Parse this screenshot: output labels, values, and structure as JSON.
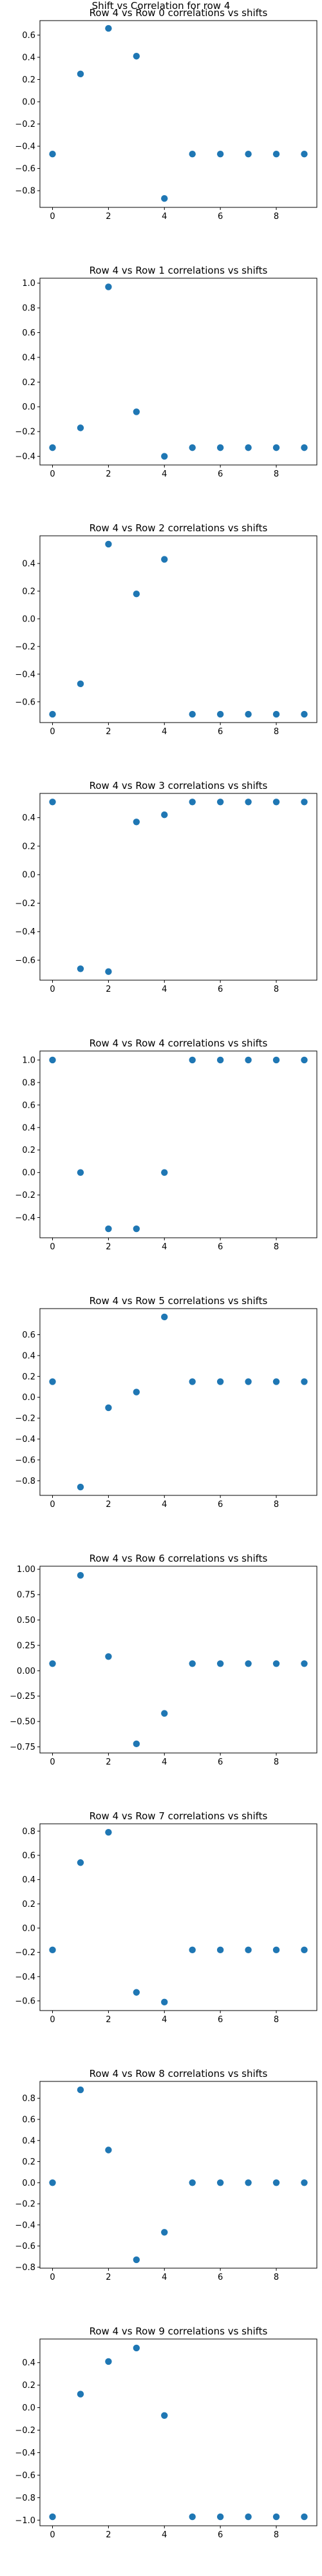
{
  "figure_title": "Shift vs Correlation for row 4",
  "marker_color": "#1f77b4",
  "chart_data": [
    {
      "type": "scatter",
      "title": "Row 4 vs Row 0 correlations vs shifts",
      "x": [
        0,
        1,
        2,
        3,
        4,
        5,
        6,
        7,
        8,
        9
      ],
      "y": [
        -0.47,
        0.25,
        0.66,
        0.41,
        -0.87,
        -0.47,
        -0.47,
        -0.47,
        -0.47,
        -0.47
      ],
      "xticks": [
        0,
        2,
        4,
        6,
        8
      ],
      "xtick_labels": [
        "0",
        "2",
        "4",
        "6",
        "8"
      ],
      "yticks": [
        -0.8,
        -0.6,
        -0.4,
        -0.2,
        0.0,
        0.2,
        0.4,
        0.6
      ],
      "ytick_labels": [
        "−0.8",
        "−0.6",
        "−0.4",
        "−0.2",
        "0.0",
        "0.2",
        "0.4",
        "0.6"
      ],
      "xlim": [
        -0.45,
        9.45
      ],
      "ylim": [
        -0.95,
        0.73
      ],
      "grid": false
    },
    {
      "type": "scatter",
      "title": "Row 4 vs Row 1 correlations vs shifts",
      "x": [
        0,
        1,
        2,
        3,
        4,
        5,
        6,
        7,
        8,
        9
      ],
      "y": [
        -0.33,
        -0.17,
        0.97,
        -0.04,
        -0.4,
        -0.33,
        -0.33,
        -0.33,
        -0.33,
        -0.33
      ],
      "xticks": [
        0,
        2,
        4,
        6,
        8
      ],
      "xtick_labels": [
        "0",
        "2",
        "4",
        "6",
        "8"
      ],
      "yticks": [
        -0.4,
        -0.2,
        0.0,
        0.2,
        0.4,
        0.6,
        0.8,
        1.0
      ],
      "ytick_labels": [
        "−0.4",
        "−0.2",
        "0.0",
        "0.2",
        "0.4",
        "0.6",
        "0.8",
        "1.0"
      ],
      "xlim": [
        -0.45,
        9.45
      ],
      "ylim": [
        -0.47,
        1.04
      ],
      "grid": false
    },
    {
      "type": "scatter",
      "title": "Row 4 vs Row 2 correlations vs shifts",
      "x": [
        0,
        1,
        2,
        3,
        4,
        5,
        6,
        7,
        8,
        9
      ],
      "y": [
        -0.69,
        -0.47,
        0.54,
        0.18,
        0.43,
        -0.69,
        -0.69,
        -0.69,
        -0.69,
        -0.69
      ],
      "xticks": [
        0,
        2,
        4,
        6,
        8
      ],
      "xtick_labels": [
        "0",
        "2",
        "4",
        "6",
        "8"
      ],
      "yticks": [
        -0.6,
        -0.4,
        -0.2,
        0.0,
        0.2,
        0.4
      ],
      "ytick_labels": [
        "−0.6",
        "−0.4",
        "−0.2",
        "0.0",
        "0.2",
        "0.4"
      ],
      "xlim": [
        -0.45,
        9.45
      ],
      "ylim": [
        -0.75,
        0.6
      ],
      "grid": false
    },
    {
      "type": "scatter",
      "title": "Row 4 vs Row 3 correlations vs shifts",
      "x": [
        0,
        1,
        2,
        3,
        4,
        5,
        6,
        7,
        8,
        9
      ],
      "y": [
        0.51,
        -0.66,
        -0.68,
        0.37,
        0.42,
        0.51,
        0.51,
        0.51,
        0.51,
        0.51
      ],
      "xticks": [
        0,
        2,
        4,
        6,
        8
      ],
      "xtick_labels": [
        "0",
        "2",
        "4",
        "6",
        "8"
      ],
      "yticks": [
        -0.6,
        -0.4,
        -0.2,
        0.0,
        0.2,
        0.4
      ],
      "ytick_labels": [
        "−0.6",
        "−0.4",
        "−0.2",
        "0.0",
        "0.2",
        "0.4"
      ],
      "xlim": [
        -0.45,
        9.45
      ],
      "ylim": [
        -0.74,
        0.57
      ],
      "grid": false
    },
    {
      "type": "scatter",
      "title": "Row 4 vs Row 4 correlations vs shifts",
      "x": [
        0,
        1,
        2,
        3,
        4,
        5,
        6,
        7,
        8,
        9
      ],
      "y": [
        1.0,
        0.0,
        -0.5,
        -0.5,
        0.0,
        1.0,
        1.0,
        1.0,
        1.0,
        1.0
      ],
      "xticks": [
        0,
        2,
        4,
        6,
        8
      ],
      "xtick_labels": [
        "0",
        "2",
        "4",
        "6",
        "8"
      ],
      "yticks": [
        -0.4,
        -0.2,
        0.0,
        0.2,
        0.4,
        0.6,
        0.8,
        1.0
      ],
      "ytick_labels": [
        "−0.4",
        "−0.2",
        "0.0",
        "0.2",
        "0.4",
        "0.6",
        "0.8",
        "1.0"
      ],
      "xlim": [
        -0.45,
        9.45
      ],
      "ylim": [
        -0.58,
        1.08
      ],
      "grid": false
    },
    {
      "type": "scatter",
      "title": "Row 4 vs Row 5 correlations vs shifts",
      "x": [
        0,
        1,
        2,
        3,
        4,
        5,
        6,
        7,
        8,
        9
      ],
      "y": [
        0.15,
        -0.86,
        -0.1,
        0.05,
        0.77,
        0.15,
        0.15,
        0.15,
        0.15,
        0.15
      ],
      "xticks": [
        0,
        2,
        4,
        6,
        8
      ],
      "xtick_labels": [
        "0",
        "2",
        "4",
        "6",
        "8"
      ],
      "yticks": [
        -0.8,
        -0.6,
        -0.4,
        -0.2,
        0.0,
        0.2,
        0.4,
        0.6
      ],
      "ytick_labels": [
        "−0.8",
        "−0.6",
        "−0.4",
        "−0.2",
        "0.0",
        "0.2",
        "0.4",
        "0.6"
      ],
      "xlim": [
        -0.45,
        9.45
      ],
      "ylim": [
        -0.94,
        0.85
      ],
      "grid": false
    },
    {
      "type": "scatter",
      "title": "Row 4 vs Row 6 correlations vs shifts",
      "x": [
        0,
        1,
        2,
        3,
        4,
        5,
        6,
        7,
        8,
        9
      ],
      "y": [
        0.07,
        0.94,
        0.14,
        -0.72,
        -0.42,
        0.07,
        0.07,
        0.07,
        0.07,
        0.07
      ],
      "xticks": [
        0,
        2,
        4,
        6,
        8
      ],
      "xtick_labels": [
        "0",
        "2",
        "4",
        "6",
        "8"
      ],
      "yticks": [
        -0.75,
        -0.5,
        -0.25,
        0.0,
        0.25,
        0.5,
        0.75,
        1.0
      ],
      "ytick_labels": [
        "−0.75",
        "−0.50",
        "−0.25",
        "0.00",
        "0.25",
        "0.50",
        "0.75",
        "1.00"
      ],
      "xlim": [
        -0.45,
        9.45
      ],
      "ylim": [
        -0.81,
        1.03
      ],
      "grid": false
    },
    {
      "type": "scatter",
      "title": "Row 4 vs Row 7 correlations vs shifts",
      "x": [
        0,
        1,
        2,
        3,
        4,
        5,
        6,
        7,
        8,
        9
      ],
      "y": [
        -0.18,
        0.54,
        0.79,
        -0.53,
        -0.61,
        -0.18,
        -0.18,
        -0.18,
        -0.18,
        -0.18
      ],
      "xticks": [
        0,
        2,
        4,
        6,
        8
      ],
      "xtick_labels": [
        "0",
        "2",
        "4",
        "6",
        "8"
      ],
      "yticks": [
        -0.6,
        -0.4,
        -0.2,
        0.0,
        0.2,
        0.4,
        0.6,
        0.8
      ],
      "ytick_labels": [
        "−0.6",
        "−0.4",
        "−0.2",
        "0.0",
        "0.2",
        "0.4",
        "0.6",
        "0.8"
      ],
      "xlim": [
        -0.45,
        9.45
      ],
      "ylim": [
        -0.68,
        0.86
      ],
      "grid": false
    },
    {
      "type": "scatter",
      "title": "Row 4 vs Row 8 correlations vs shifts",
      "x": [
        0,
        1,
        2,
        3,
        4,
        5,
        6,
        7,
        8,
        9
      ],
      "y": [
        0.0,
        0.88,
        0.31,
        -0.73,
        -0.47,
        0.0,
        0.0,
        0.0,
        0.0,
        0.0
      ],
      "xticks": [
        0,
        2,
        4,
        6,
        8
      ],
      "xtick_labels": [
        "0",
        "2",
        "4",
        "6",
        "8"
      ],
      "yticks": [
        -0.8,
        -0.6,
        -0.4,
        -0.2,
        0.0,
        0.2,
        0.4,
        0.6,
        0.8
      ],
      "ytick_labels": [
        "−0.8",
        "−0.6",
        "−0.4",
        "−0.2",
        "0.0",
        "0.2",
        "0.4",
        "0.6",
        "0.8"
      ],
      "xlim": [
        -0.45,
        9.45
      ],
      "ylim": [
        -0.81,
        0.96
      ],
      "grid": false
    },
    {
      "type": "scatter",
      "title": "Row 4 vs Row 9 correlations vs shifts",
      "x": [
        0,
        1,
        2,
        3,
        4,
        5,
        6,
        7,
        8,
        9
      ],
      "y": [
        -0.97,
        0.12,
        0.41,
        0.53,
        -0.07,
        -0.97,
        -0.97,
        -0.97,
        -0.97,
        -0.97
      ],
      "xticks": [
        0,
        2,
        4,
        6,
        8
      ],
      "xtick_labels": [
        "0",
        "2",
        "4",
        "6",
        "8"
      ],
      "yticks": [
        -1.0,
        -0.8,
        -0.6,
        -0.4,
        -0.2,
        0.0,
        0.2,
        0.4
      ],
      "ytick_labels": [
        "−1.0",
        "−0.8",
        "−0.6",
        "−0.4",
        "−0.2",
        "0.0",
        "0.2",
        "0.4"
      ],
      "xlim": [
        -0.45,
        9.45
      ],
      "ylim": [
        -1.05,
        0.61
      ],
      "grid": false
    }
  ]
}
